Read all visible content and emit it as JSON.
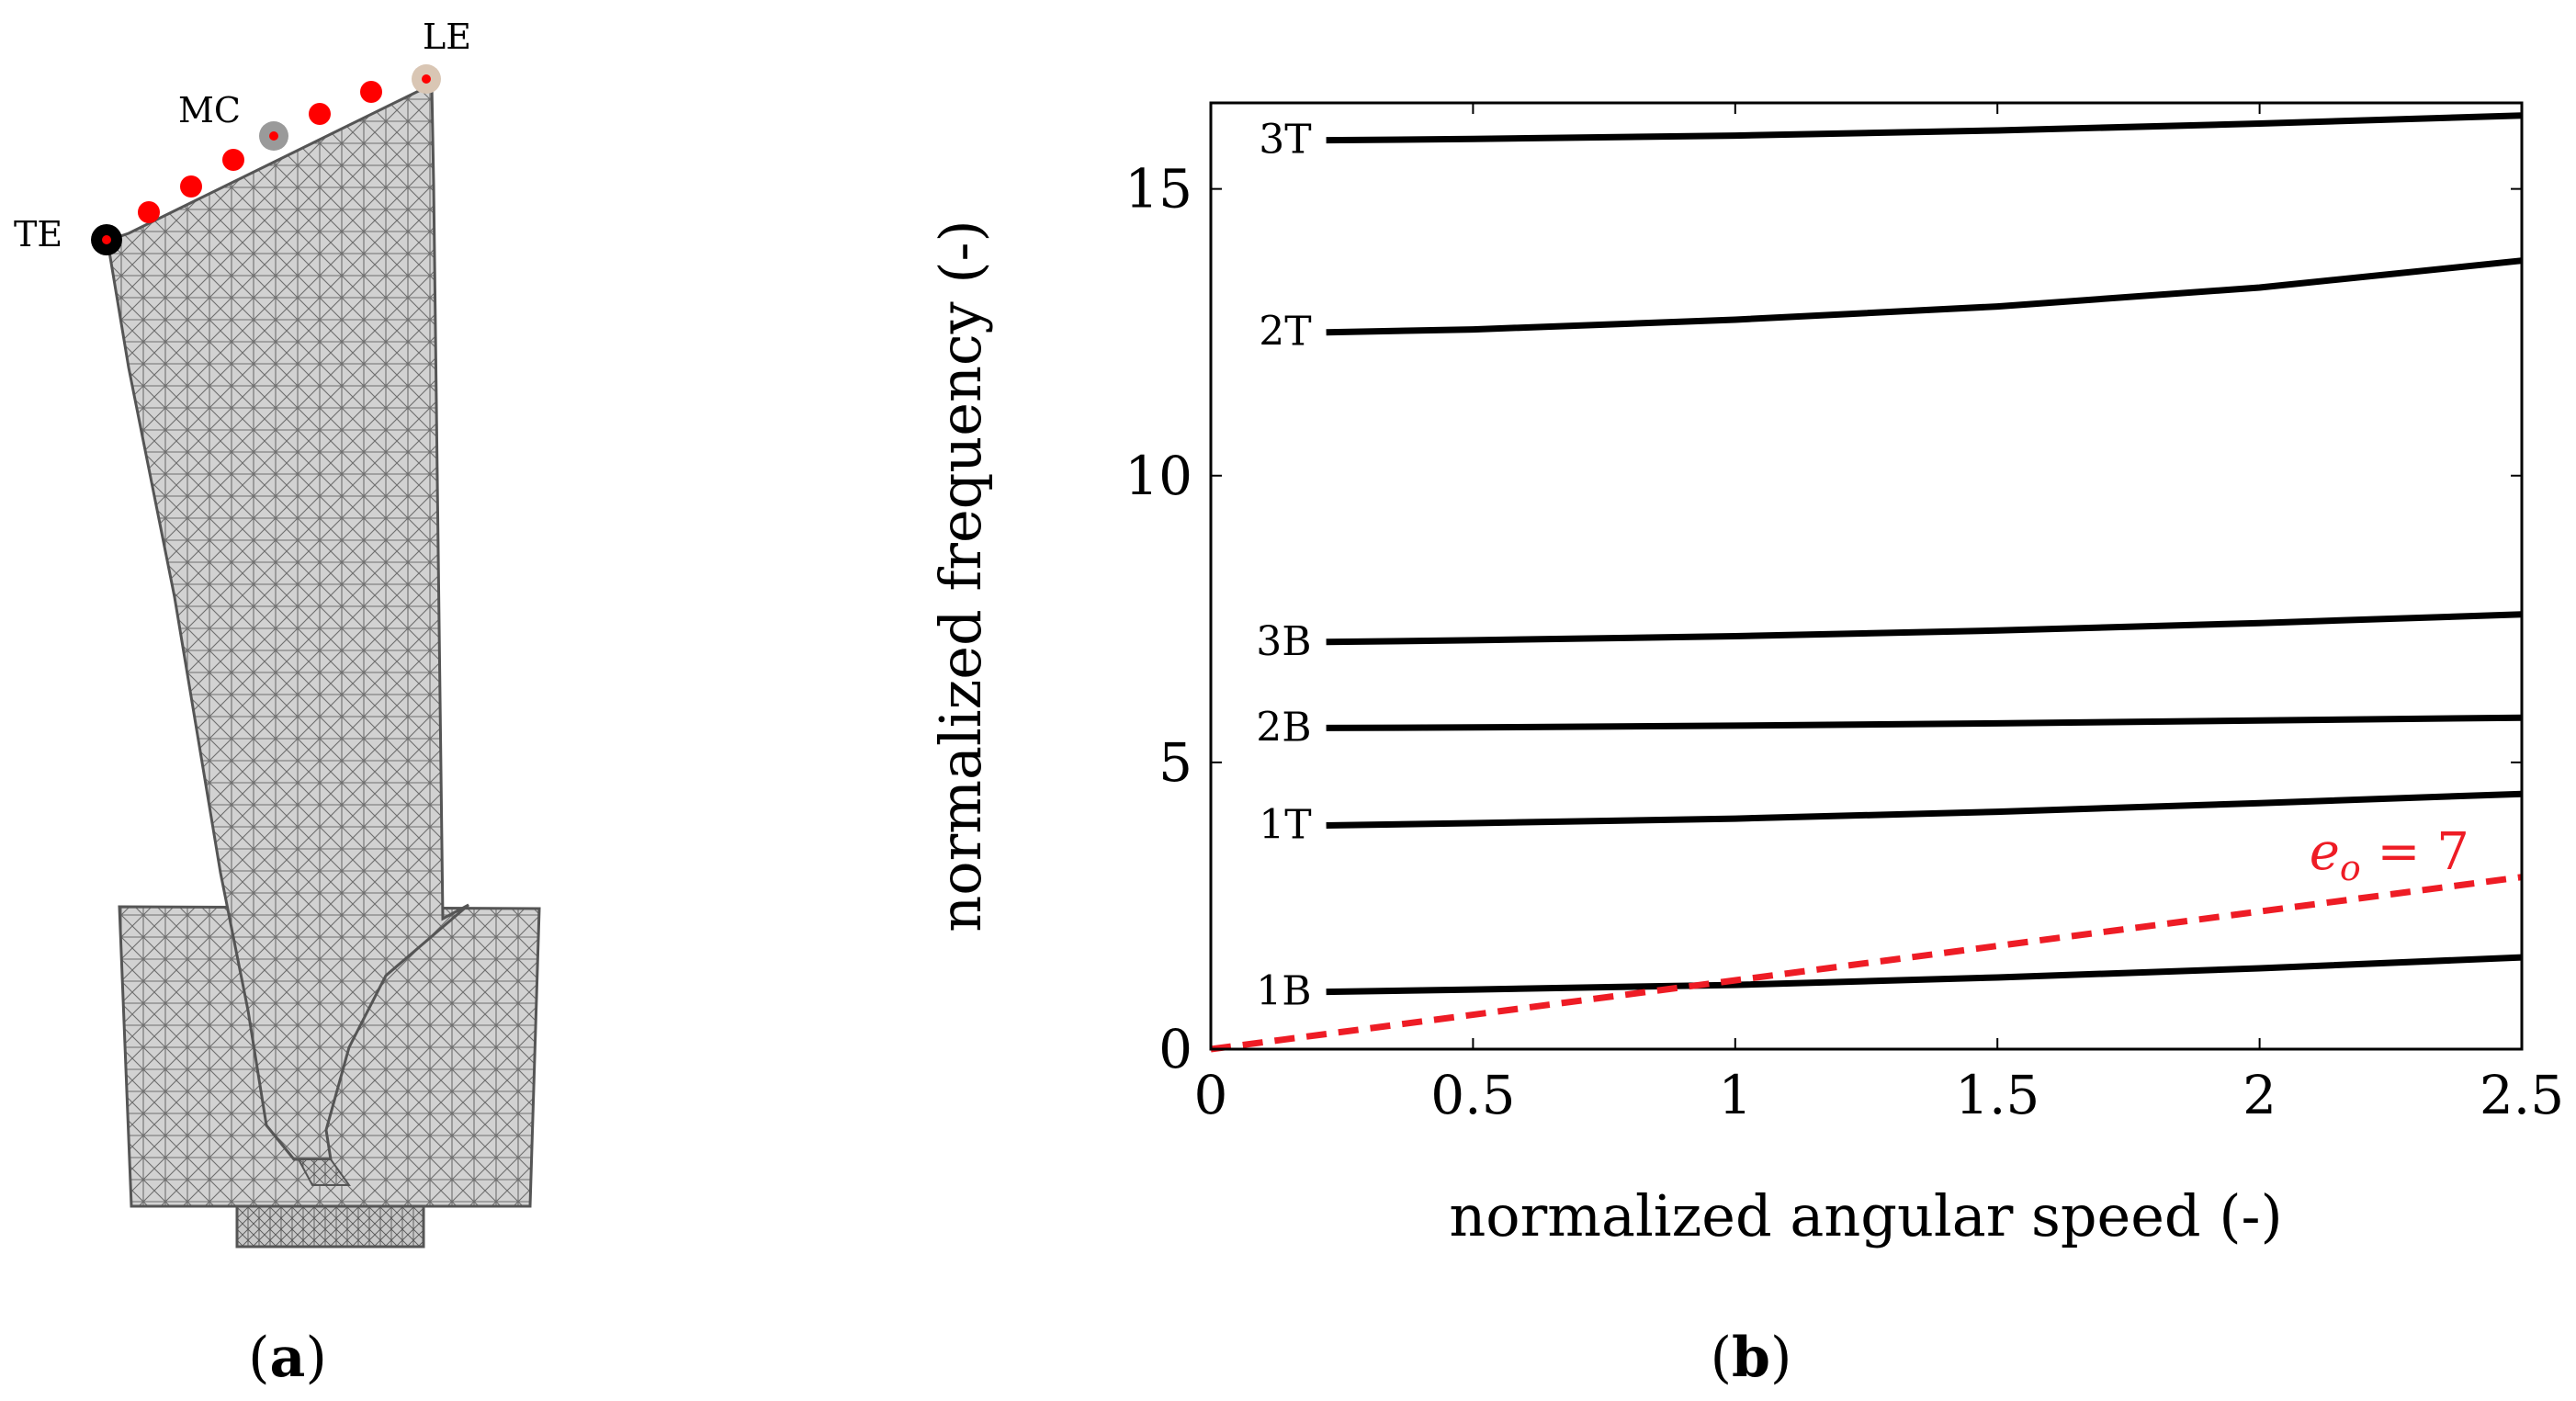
{
  "panel_a": {
    "caption_letter": "a",
    "point_labels": {
      "te": "TE",
      "mc": "MC",
      "le": "LE"
    },
    "colors": {
      "mesh_fill": "#d2d2d2",
      "mesh_line": "#555555",
      "probe": "#ff0000",
      "te_ring": "#000000",
      "mc_ring": "#9a9a9a",
      "le_ring": "#d9c6b4"
    }
  },
  "panel_b": {
    "caption_letter": "b"
  },
  "chart_data": {
    "type": "line",
    "title": "",
    "xlabel": "normalized angular speed (-)",
    "ylabel": "normalized frequency (-)",
    "xlim": [
      0,
      2.5
    ],
    "ylim": [
      0,
      16.5
    ],
    "xticks": [
      0,
      0.5,
      1,
      1.5,
      2,
      2.5
    ],
    "xtick_labels": [
      "0",
      "0.5",
      "1",
      "1.5",
      "2",
      "2.5"
    ],
    "yticks": [
      0,
      5,
      10,
      15
    ],
    "ytick_labels": [
      "0",
      "5",
      "10",
      "15"
    ],
    "grid": false,
    "series": [
      {
        "name": "1B",
        "color": "#000000",
        "dashed": false,
        "x": [
          0.22,
          0.5,
          1.0,
          1.5,
          2.0,
          2.5
        ],
        "y": [
          1.0,
          1.04,
          1.12,
          1.25,
          1.41,
          1.6
        ]
      },
      {
        "name": "1T",
        "color": "#000000",
        "dashed": false,
        "x": [
          0.22,
          0.5,
          1.0,
          1.5,
          2.0,
          2.5
        ],
        "y": [
          3.9,
          3.94,
          4.02,
          4.14,
          4.29,
          4.45
        ]
      },
      {
        "name": "2B",
        "color": "#000000",
        "dashed": false,
        "x": [
          0.22,
          0.5,
          1.0,
          1.5,
          2.0,
          2.5
        ],
        "y": [
          5.6,
          5.61,
          5.64,
          5.68,
          5.73,
          5.78
        ]
      },
      {
        "name": "3B",
        "color": "#000000",
        "dashed": false,
        "x": [
          0.22,
          0.5,
          1.0,
          1.5,
          2.0,
          2.5
        ],
        "y": [
          7.1,
          7.13,
          7.2,
          7.3,
          7.43,
          7.58
        ]
      },
      {
        "name": "2T",
        "color": "#000000",
        "dashed": false,
        "x": [
          0.22,
          0.5,
          1.0,
          1.5,
          2.0,
          2.5
        ],
        "y": [
          12.5,
          12.55,
          12.72,
          12.95,
          13.28,
          13.75
        ]
      },
      {
        "name": "3T",
        "color": "#000000",
        "dashed": false,
        "x": [
          0.22,
          0.5,
          1.0,
          1.5,
          2.0,
          2.5
        ],
        "y": [
          15.85,
          15.87,
          15.93,
          16.02,
          16.14,
          16.28
        ]
      },
      {
        "name": "e_o = 7",
        "color": "#ee1c25",
        "dashed": true,
        "x": [
          0,
          2.5
        ],
        "y": [
          0,
          3.0
        ]
      }
    ],
    "annotations": [
      {
        "text_base": "e",
        "text_sub": "o",
        "text_rest": " = 7",
        "x": 2.4,
        "y": 3.3,
        "color": "#ee1c25"
      }
    ]
  }
}
